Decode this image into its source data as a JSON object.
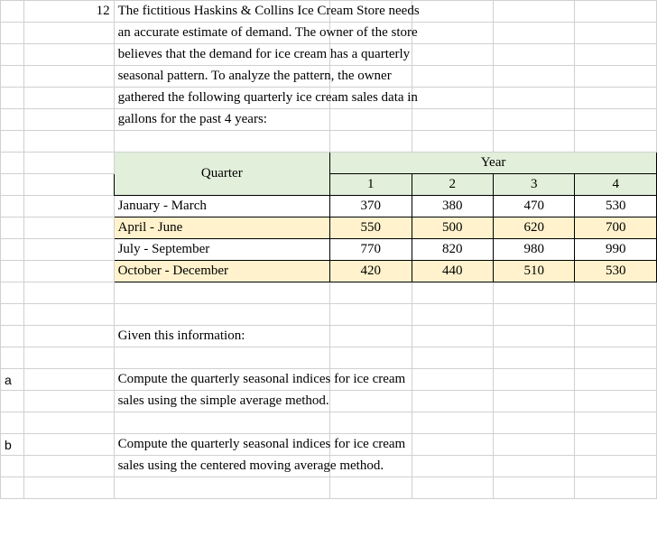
{
  "rownum": "12",
  "problem_text": [
    "The fictitious Haskins & Collins Ice Cream Store needs",
    "an accurate estimate of demand.  The owner of the store",
    "believes that the demand for ice cream has a quarterly",
    "seasonal pattern. To analyze the pattern, the owner",
    "gathered the following quarterly ice cream sales data in",
    "gallons for the past 4 years:"
  ],
  "table": {
    "corner_label": "Quarter",
    "year_label": "Year",
    "year_cols": [
      "1",
      "2",
      "3",
      "4"
    ],
    "rows": [
      {
        "label": "January - March",
        "values": [
          "370",
          "380",
          "470",
          "530"
        ],
        "highlight": false
      },
      {
        "label": "April - June",
        "values": [
          "550",
          "500",
          "620",
          "700"
        ],
        "highlight": true
      },
      {
        "label": "July - September",
        "values": [
          "770",
          "820",
          "980",
          "990"
        ],
        "highlight": false
      },
      {
        "label": "October - December",
        "values": [
          "420",
          "440",
          "510",
          "530"
        ],
        "highlight": true
      }
    ]
  },
  "prompt_label": "Given this information:",
  "parts": {
    "a": {
      "label": "a",
      "lines": [
        "Compute the quarterly seasonal indices for ice cream",
        "sales using the simple average method."
      ]
    },
    "b": {
      "label": "b",
      "lines": [
        "Compute the quarterly seasonal indices for ice cream",
        "sales using the centered moving average method."
      ]
    }
  },
  "colors": {
    "grid": "#d0d0d0",
    "header_bg": "#e2efda",
    "highlight_bg": "#fff2cc"
  }
}
